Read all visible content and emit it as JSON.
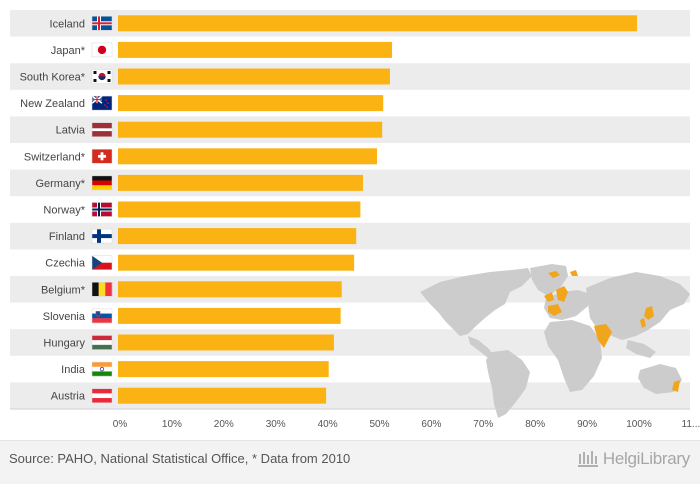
{
  "chart_data": {
    "type": "bar",
    "orientation": "horizontal",
    "categories": [
      "Iceland",
      "Japan*",
      "South Korea*",
      "New Zealand",
      "Latvia",
      "Switzerland*",
      "Germany*",
      "Norway*",
      "Finland",
      "Czechia",
      "Belgium*",
      "Slovenia",
      "Hungary",
      "India",
      "Austria"
    ],
    "values": [
      100,
      52.8,
      52.4,
      51.1,
      50.9,
      49.9,
      47.2,
      46.7,
      45.9,
      45.5,
      43.1,
      42.9,
      41.6,
      40.6,
      40.1
    ],
    "xticks": [
      "0%",
      "10%",
      "20%",
      "30%",
      "40%",
      "50%",
      "60%",
      "70%",
      "80%",
      "90%",
      "100%",
      "11..."
    ],
    "xlim": [
      0,
      110
    ],
    "bar_color": "#fbb313",
    "grid": false,
    "legend": "none"
  },
  "flags": [
    "iceland-flag-icon",
    "japan-flag-icon",
    "south-korea-flag-icon",
    "new-zealand-flag-icon",
    "latvia-flag-icon",
    "switzerland-flag-icon",
    "germany-flag-icon",
    "norway-flag-icon",
    "finland-flag-icon",
    "czechia-flag-icon",
    "belgium-flag-icon",
    "slovenia-flag-icon",
    "hungary-flag-icon",
    "india-flag-icon",
    "austria-flag-icon"
  ],
  "footer": {
    "source": "Source: PAHO, National Statistical Office, * Data from 2010",
    "brand": "HelgiLibrary"
  },
  "colors": {
    "row_band": "#ececec",
    "map_land": "#cccccc",
    "map_highlight": "#f0a51c"
  }
}
